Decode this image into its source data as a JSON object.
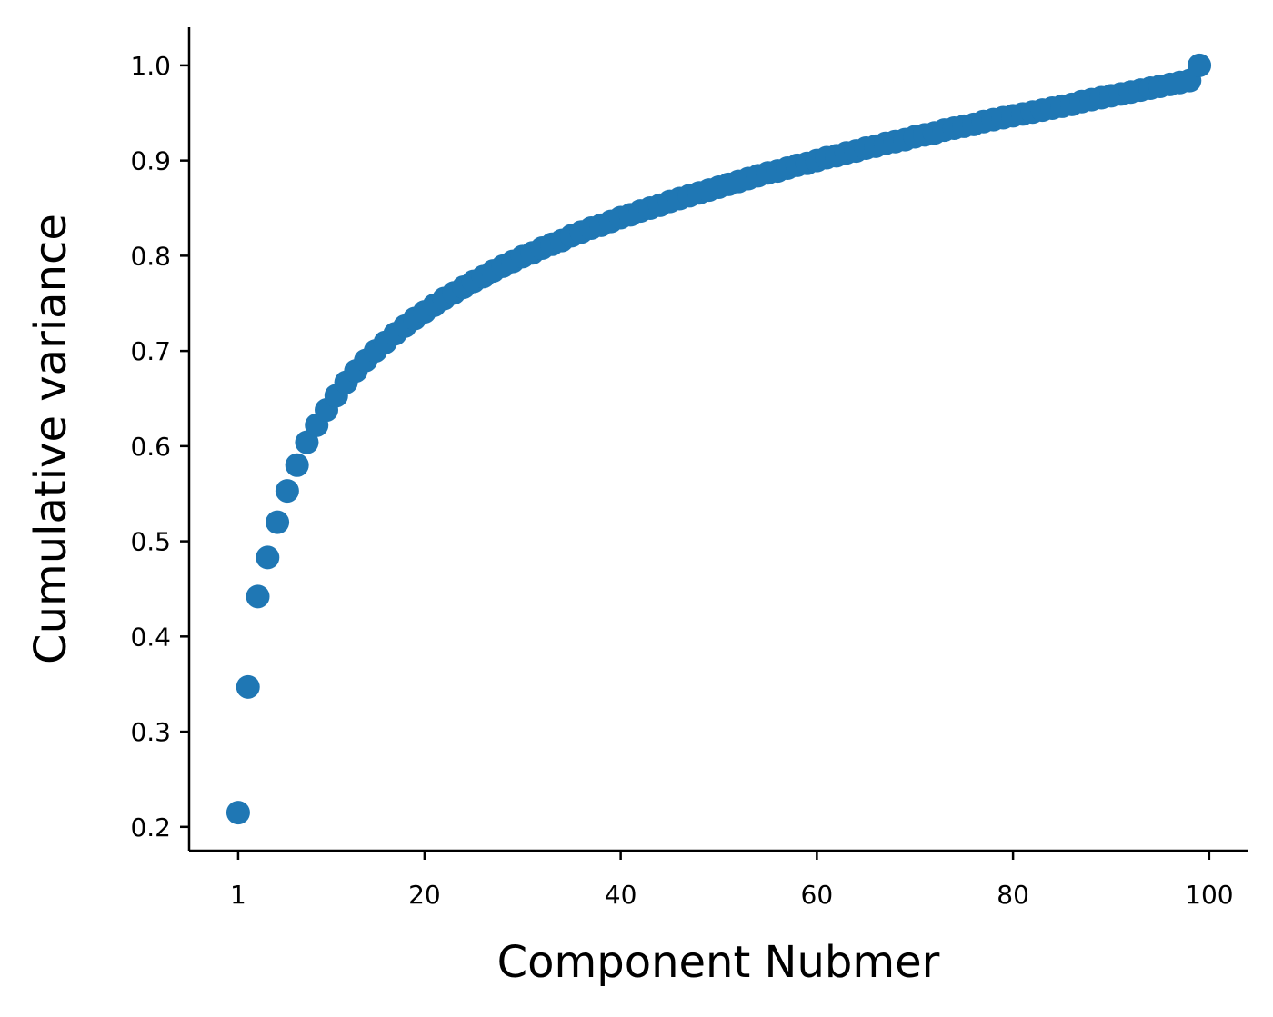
{
  "chart_data": {
    "type": "scatter",
    "title": "",
    "xlabel": "Component Nubmer",
    "ylabel": "Cumulative variance",
    "xlim": [
      -4,
      104
    ],
    "ylim": [
      0.175,
      1.04
    ],
    "xticks": [
      1,
      20,
      40,
      60,
      80,
      100
    ],
    "yticks": [
      0.2,
      0.3,
      0.4,
      0.5,
      0.6,
      0.7,
      0.8,
      0.9,
      1.0
    ],
    "ytick_labels": [
      "0.2",
      "0.3",
      "0.4",
      "0.5",
      "0.6",
      "0.7",
      "0.8",
      "0.9",
      "1.0"
    ],
    "grid": false,
    "color": "#1f77b4",
    "x": [
      1,
      2,
      3,
      4,
      5,
      6,
      7,
      8,
      9,
      10,
      11,
      12,
      13,
      14,
      15,
      16,
      17,
      18,
      19,
      20,
      21,
      22,
      23,
      24,
      25,
      26,
      27,
      28,
      29,
      30,
      31,
      32,
      33,
      34,
      35,
      36,
      37,
      38,
      39,
      40,
      41,
      42,
      43,
      44,
      45,
      46,
      47,
      48,
      49,
      50,
      51,
      52,
      53,
      54,
      55,
      56,
      57,
      58,
      59,
      60,
      61,
      62,
      63,
      64,
      65,
      66,
      67,
      68,
      69,
      70,
      71,
      72,
      73,
      74,
      75,
      76,
      77,
      78,
      79,
      80,
      81,
      82,
      83,
      84,
      85,
      86,
      87,
      88,
      89,
      90,
      91,
      92,
      93,
      94,
      95,
      96,
      97,
      98,
      99
    ],
    "y": [
      0.215,
      0.347,
      0.442,
      0.483,
      0.52,
      0.553,
      0.58,
      0.604,
      0.622,
      0.638,
      0.653,
      0.667,
      0.679,
      0.69,
      0.7,
      0.709,
      0.718,
      0.726,
      0.734,
      0.741,
      0.748,
      0.755,
      0.761,
      0.767,
      0.773,
      0.778,
      0.784,
      0.789,
      0.794,
      0.799,
      0.803,
      0.808,
      0.812,
      0.816,
      0.821,
      0.825,
      0.829,
      0.832,
      0.836,
      0.84,
      0.843,
      0.847,
      0.85,
      0.853,
      0.857,
      0.86,
      0.863,
      0.866,
      0.869,
      0.872,
      0.875,
      0.878,
      0.881,
      0.884,
      0.887,
      0.889,
      0.892,
      0.895,
      0.897,
      0.9,
      0.903,
      0.905,
      0.908,
      0.91,
      0.913,
      0.915,
      0.918,
      0.92,
      0.922,
      0.925,
      0.927,
      0.929,
      0.932,
      0.934,
      0.936,
      0.938,
      0.941,
      0.943,
      0.945,
      0.947,
      0.949,
      0.951,
      0.953,
      0.955,
      0.957,
      0.959,
      0.962,
      0.964,
      0.966,
      0.968,
      0.97,
      0.972,
      0.974,
      0.976,
      0.978,
      0.98,
      0.982,
      0.984,
      1.0
    ]
  }
}
